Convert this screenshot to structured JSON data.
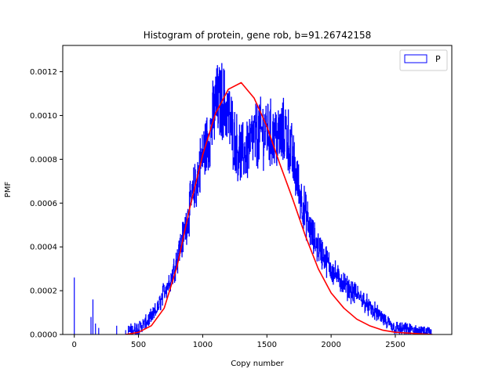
{
  "chart_data": {
    "type": "histogram",
    "title": "Histogram of protein, gene rob, b=91.26742158",
    "xlabel": "Copy number",
    "ylabel": "PMF",
    "xlim": [
      -90,
      2940
    ],
    "ylim": [
      0,
      0.00132
    ],
    "xticks": [
      0,
      500,
      1000,
      1500,
      2000,
      2500
    ],
    "xtick_labels": [
      "0",
      "500",
      "1000",
      "1500",
      "2000",
      "2500"
    ],
    "yticks": [
      0,
      0.0002,
      0.0004,
      0.0006,
      0.0008,
      0.001,
      0.0012
    ],
    "ytick_labels": [
      "0.0000",
      "0.0002",
      "0.0004",
      "0.0006",
      "0.0008",
      "0.0010",
      "0.0012"
    ],
    "grid": false,
    "legend": {
      "placement": "top-right",
      "entries": [
        {
          "label": "P",
          "color": "#0000ff"
        }
      ]
    },
    "series": [
      {
        "name": "P",
        "kind": "step-histogram",
        "color": "#0000ff",
        "x_range": [
          0,
          2780
        ],
        "spikes": [
          {
            "x": 0,
            "y": 0.00026
          },
          {
            "x": 130,
            "y": 8e-05
          },
          {
            "x": 145,
            "y": 0.00016
          },
          {
            "x": 165,
            "y": 5e-05
          },
          {
            "x": 190,
            "y": 3e-05
          },
          {
            "x": 330,
            "y": 4e-05
          },
          {
            "x": 400,
            "y": 2e-05
          }
        ],
        "envelope": [
          [
            0,
            0
          ],
          [
            400,
            1e-05
          ],
          [
            450,
            2e-05
          ],
          [
            500,
            3e-05
          ],
          [
            550,
            5e-05
          ],
          [
            600,
            8e-05
          ],
          [
            650,
            0.00012
          ],
          [
            700,
            0.0002
          ],
          [
            750,
            0.00025
          ],
          [
            800,
            0.00035
          ],
          [
            850,
            0.00045
          ],
          [
            900,
            0.00058
          ],
          [
            950,
            0.0007
          ],
          [
            1000,
            0.00082
          ],
          [
            1050,
            0.0009
          ],
          [
            1100,
            0.00105
          ],
          [
            1150,
            0.00107
          ],
          [
            1200,
            0.001
          ],
          [
            1250,
            0.00088
          ],
          [
            1300,
            0.00082
          ],
          [
            1350,
            0.00085
          ],
          [
            1400,
            0.0009
          ],
          [
            1450,
            0.00092
          ],
          [
            1500,
            0.00093
          ],
          [
            1550,
            0.0009
          ],
          [
            1600,
            0.0009
          ],
          [
            1650,
            0.00093
          ],
          [
            1700,
            0.0008
          ],
          [
            1750,
            0.00066
          ],
          [
            1800,
            0.00055
          ],
          [
            1850,
            0.00045
          ],
          [
            1900,
            0.0004
          ],
          [
            1950,
            0.00035
          ],
          [
            2000,
            0.0003
          ],
          [
            2050,
            0.00026
          ],
          [
            2100,
            0.00023
          ],
          [
            2150,
            0.0002
          ],
          [
            2200,
            0.00018
          ],
          [
            2250,
            0.00016
          ],
          [
            2300,
            0.00012
          ],
          [
            2350,
            0.0001
          ],
          [
            2400,
            7e-05
          ],
          [
            2450,
            5e-05
          ],
          [
            2500,
            3e-05
          ],
          [
            2600,
            2e-05
          ],
          [
            2700,
            1e-05
          ],
          [
            2780,
            0
          ]
        ]
      },
      {
        "name": "",
        "kind": "line",
        "color": "#ff0000",
        "x_range": [
          400,
          2790
        ],
        "peak": {
          "x": 1300,
          "y": 0.00115
        },
        "points": [
          [
            400,
            0
          ],
          [
            500,
            1e-05
          ],
          [
            600,
            4e-05
          ],
          [
            700,
            0.00012
          ],
          [
            800,
            0.00031
          ],
          [
            900,
            0.00058
          ],
          [
            1000,
            0.00082
          ],
          [
            1100,
            0.00101
          ],
          [
            1200,
            0.00112
          ],
          [
            1300,
            0.00115
          ],
          [
            1400,
            0.00108
          ],
          [
            1500,
            0.00095
          ],
          [
            1600,
            0.00078
          ],
          [
            1700,
            0.00062
          ],
          [
            1800,
            0.00045
          ],
          [
            1900,
            0.0003
          ],
          [
            2000,
            0.00019
          ],
          [
            2100,
            0.00012
          ],
          [
            2200,
            7e-05
          ],
          [
            2300,
            4e-05
          ],
          [
            2400,
            2e-05
          ],
          [
            2500,
            1e-05
          ],
          [
            2790,
            0
          ]
        ]
      }
    ]
  }
}
